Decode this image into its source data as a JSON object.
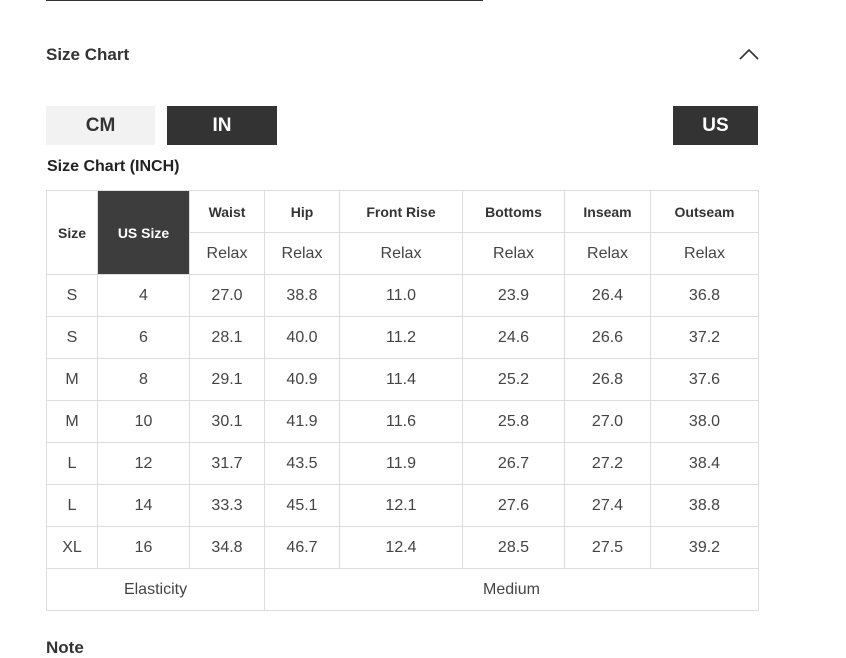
{
  "header": {
    "title": "Size Chart"
  },
  "units": [
    "CM",
    "IN"
  ],
  "region": "US",
  "table": {
    "caption": "Size Chart (INCH)",
    "headers": [
      "Size",
      "US Size",
      "Waist",
      "Hip",
      "Front Rise",
      "Bottoms",
      "Inseam",
      "Outseam"
    ],
    "subheaders": [
      "Relax",
      "Relax",
      "Relax",
      "Relax",
      "Relax",
      "Relax"
    ],
    "rows": [
      [
        "S",
        "4",
        "27.0",
        "38.8",
        "11.0",
        "23.9",
        "26.4",
        "36.8"
      ],
      [
        "S",
        "6",
        "28.1",
        "40.0",
        "11.2",
        "24.6",
        "26.6",
        "37.2"
      ],
      [
        "M",
        "8",
        "29.1",
        "40.9",
        "11.4",
        "25.2",
        "26.8",
        "37.6"
      ],
      [
        "M",
        "10",
        "30.1",
        "41.9",
        "11.6",
        "25.8",
        "27.0",
        "38.0"
      ],
      [
        "L",
        "12",
        "31.7",
        "43.5",
        "11.9",
        "26.7",
        "27.2",
        "38.4"
      ],
      [
        "L",
        "14",
        "33.3",
        "45.1",
        "12.1",
        "27.6",
        "27.4",
        "38.8"
      ],
      [
        "XL",
        "16",
        "34.8",
        "46.7",
        "12.4",
        "28.5",
        "27.5",
        "39.2"
      ]
    ],
    "footer": [
      "Elasticity",
      "Medium"
    ]
  },
  "next_section": "Note"
}
